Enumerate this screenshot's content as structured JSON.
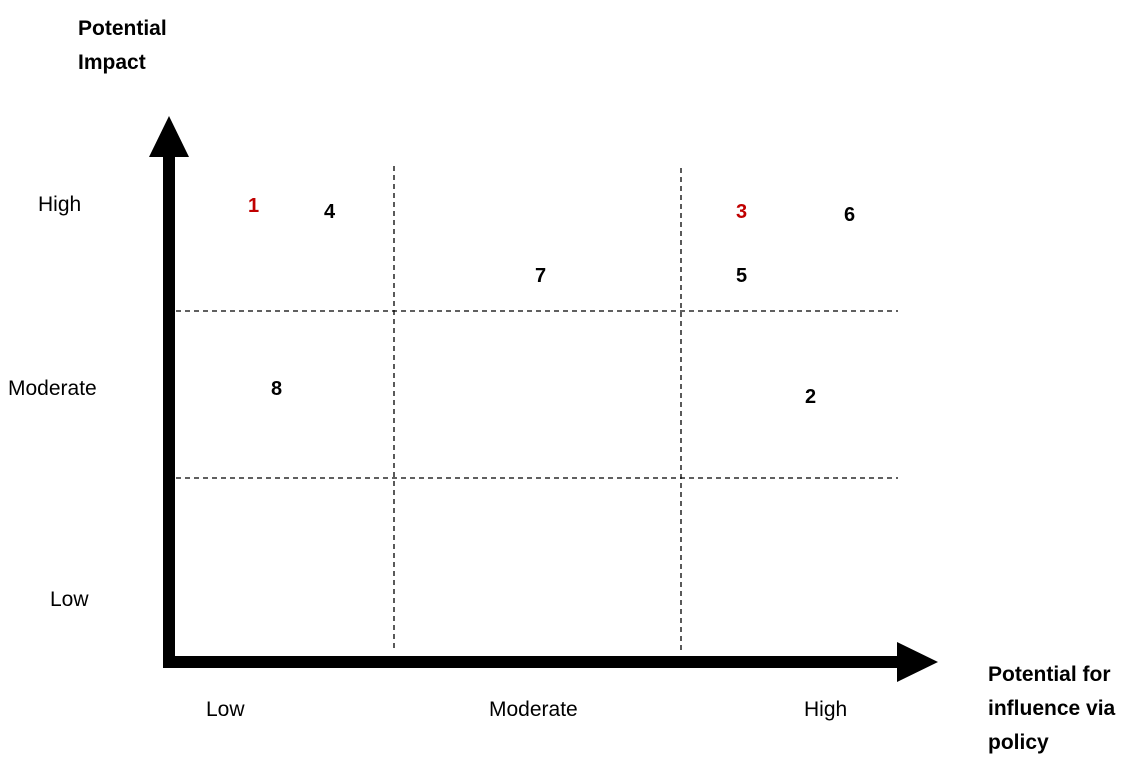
{
  "y_axis": {
    "title_line1": "Potential",
    "title_line2": "Impact",
    "ticks": [
      "High",
      "Moderate",
      "Low"
    ]
  },
  "x_axis": {
    "title_line1": "Potential for",
    "title_line2": "influence via",
    "title_line3": "policy",
    "ticks": [
      "Low",
      "Moderate",
      "High"
    ]
  },
  "colors": {
    "highlight": "#c00000",
    "default": "#000000",
    "axis": "#000000",
    "grid": "#000000"
  },
  "points": [
    {
      "label": "1",
      "highlight": true
    },
    {
      "label": "4",
      "highlight": false
    },
    {
      "label": "3",
      "highlight": true
    },
    {
      "label": "6",
      "highlight": false
    },
    {
      "label": "7",
      "highlight": false
    },
    {
      "label": "5",
      "highlight": false
    },
    {
      "label": "8",
      "highlight": false
    },
    {
      "label": "2",
      "highlight": false
    }
  ]
}
